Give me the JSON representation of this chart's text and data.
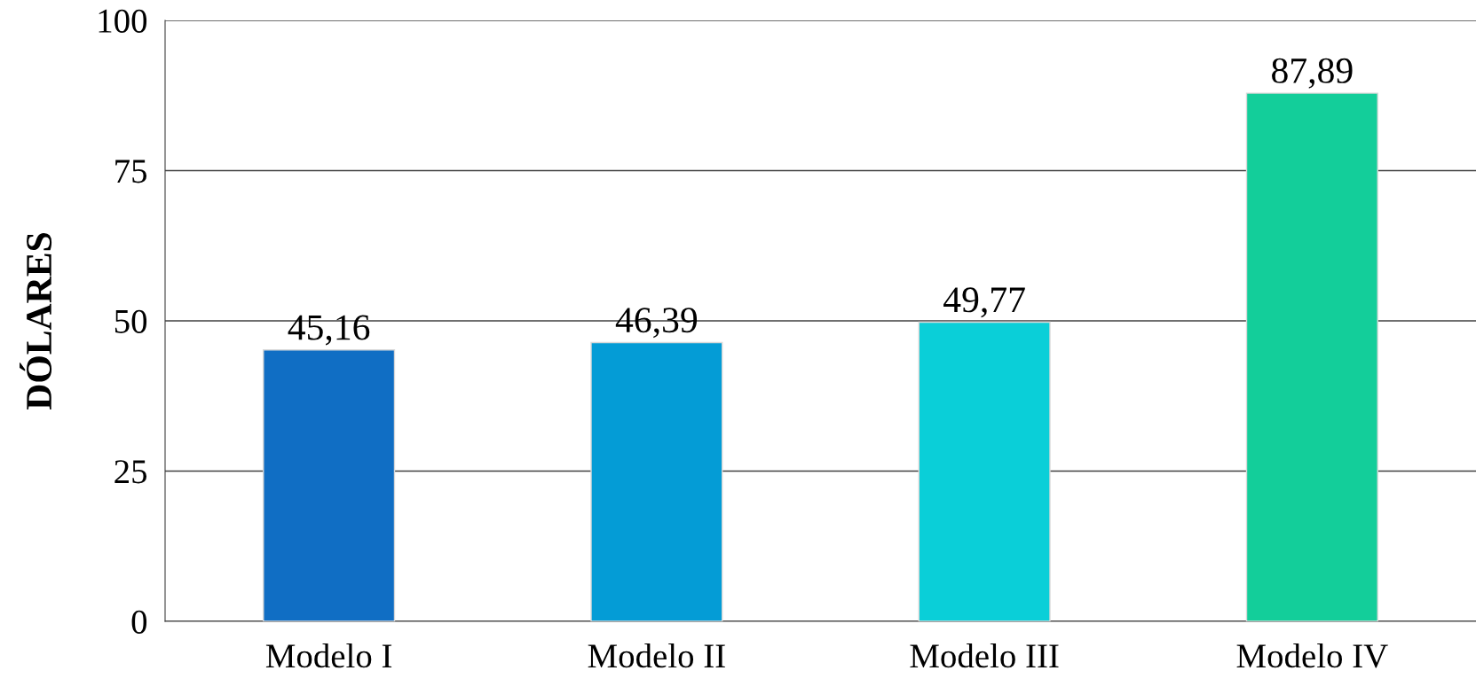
{
  "chart_data": {
    "type": "bar",
    "ylabel": "DÓLARES",
    "categories": [
      "Modelo I",
      "Modelo II",
      "Modelo III",
      "Modelo IV"
    ],
    "values": [
      45.16,
      46.39,
      49.77,
      87.89
    ],
    "value_labels": [
      "45,16",
      "46,39",
      "49,77",
      "87,89"
    ],
    "colors": [
      "#106ec4",
      "#049cd6",
      "#0acfd8",
      "#13ce9a"
    ],
    "ylim": [
      0,
      100
    ],
    "yticks": [
      0,
      25,
      50,
      75,
      100
    ],
    "grid": "y",
    "legend": false
  }
}
